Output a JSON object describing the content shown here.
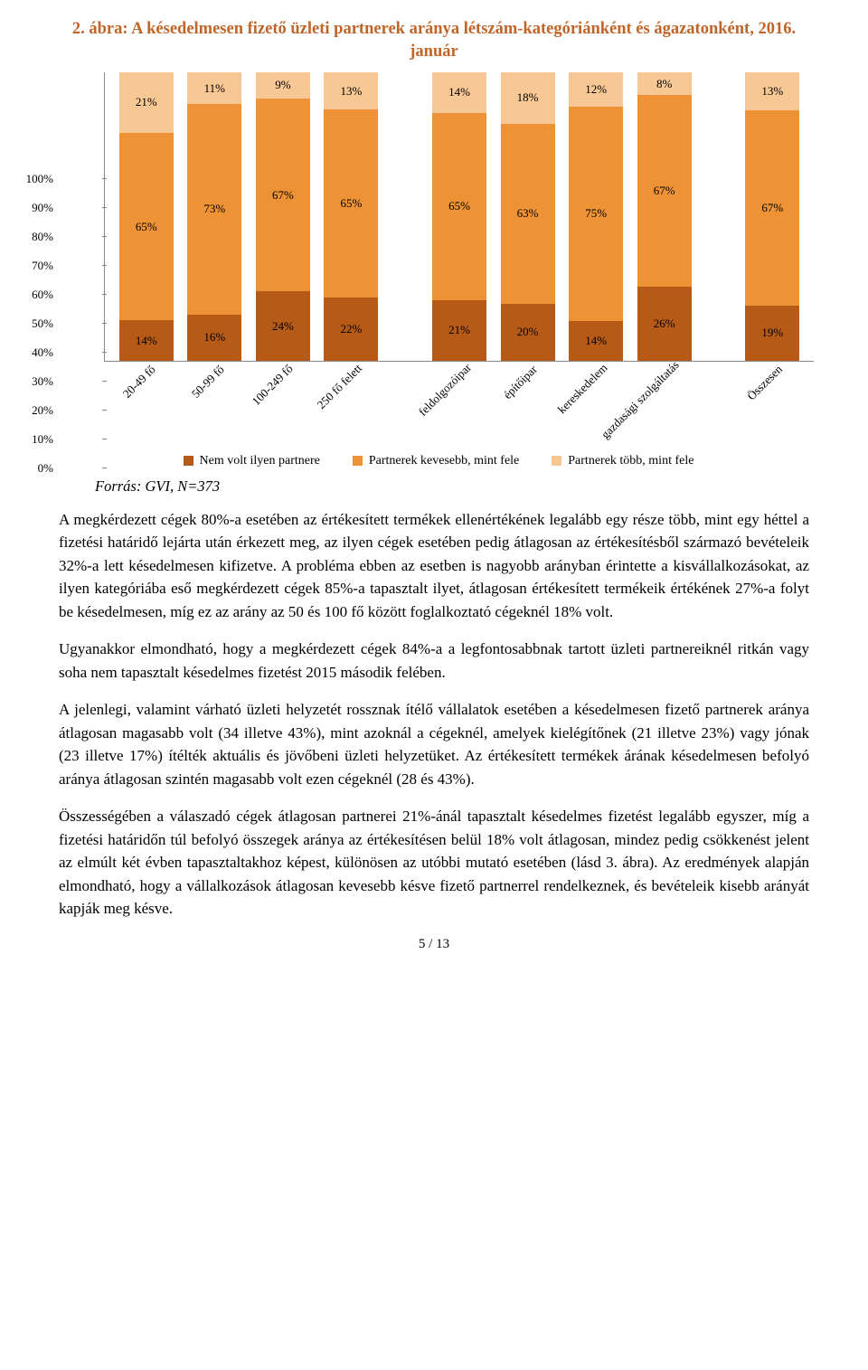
{
  "colors": {
    "title": "#c06529",
    "seg_bottom": "#b65a17",
    "seg_mid": "#ee9236",
    "seg_top": "#f8c894",
    "axis": "#888888",
    "text": "#000000",
    "bg": "#ffffff"
  },
  "chart": {
    "title": "2. ábra: A késedelmesen fizető üzleti partnerek aránya létszám-kategóriánként és ágazatonként, 2016. január",
    "type": "stacked-bar-100",
    "ylim": [
      0,
      100
    ],
    "ytick_step": 10,
    "y_ticks": [
      "0%",
      "10%",
      "20%",
      "30%",
      "40%",
      "50%",
      "60%",
      "70%",
      "80%",
      "90%",
      "100%"
    ],
    "groups": [
      {
        "label": "20-49 fő",
        "seg": [
          14,
          65,
          21
        ],
        "gap_before": false
      },
      {
        "label": "50-99 fő",
        "seg": [
          16,
          73,
          11
        ],
        "gap_before": false
      },
      {
        "label": "100-249 fő",
        "seg": [
          24,
          67,
          9
        ],
        "gap_before": false
      },
      {
        "label": "250 fő felett",
        "seg": [
          22,
          65,
          13
        ],
        "gap_before": false
      },
      {
        "label": "feldolgozóipar",
        "seg": [
          21,
          65,
          14
        ],
        "gap_before": true
      },
      {
        "label": "építőipar",
        "seg": [
          20,
          63,
          18
        ],
        "gap_before": false
      },
      {
        "label": "kereskedelem",
        "seg": [
          14,
          75,
          12
        ],
        "gap_before": false
      },
      {
        "label": "gazdasági szolgáltatás",
        "seg": [
          26,
          67,
          8
        ],
        "gap_before": false
      },
      {
        "label": "Összesen",
        "seg": [
          19,
          67,
          13
        ],
        "gap_before": true
      }
    ],
    "legend": [
      {
        "label": "Nem volt ilyen partnere",
        "color": "seg_bottom"
      },
      {
        "label": "Partnerek kevesebb, mint fele",
        "color": "seg_mid"
      },
      {
        "label": "Partnerek több, mint fele",
        "color": "seg_top"
      }
    ],
    "source": "Forrás: GVI, N=373"
  },
  "paragraphs": [
    "A megkérdezett cégek 80%-a esetében az értékesített termékek ellenértékének legalább egy része több, mint egy héttel a fizetési határidő lejárta után érkezett meg, az ilyen cégek esetében pedig átlagosan az értékesítésből származó bevételeik 32%-a lett késedelmesen kifizetve. A probléma ebben az esetben is nagyobb arányban érintette a kisvállalkozásokat, az ilyen kategóriába eső megkérdezett cégek 85%-a tapasztalt ilyet, átlagosan értékesített termékeik értékének 27%-a folyt be késedelmesen, míg ez az arány az 50 és 100 fő között foglalkoztató cégeknél 18% volt.",
    "Ugyanakkor elmondható, hogy a megkérdezett cégek 84%-a a legfontosabbnak tartott üzleti partnereiknél ritkán vagy soha nem tapasztalt késedelmes fizetést 2015 második felében.",
    "A jelenlegi, valamint várható üzleti helyzetét rossznak ítélő vállalatok esetében a késedelmesen fizető partnerek aránya átlagosan magasabb volt (34 illetve 43%), mint azoknál a cégeknél, amelyek kielégítőnek (21 illetve 23%) vagy jónak (23 illetve 17%) ítélték aktuális és jövőbeni üzleti helyzetüket. Az értékesített termékek árának késedelmesen befolyó aránya átlagosan szintén magasabb volt ezen cégeknél (28 és 43%).",
    "Összességében a válaszadó cégek átlagosan partnerei 21%-ánál tapasztalt késedelmes fizetést legalább egyszer, míg a fizetési határidőn túl befolyó összegek aránya az értékesítésen belül 18% volt átlagosan, mindez pedig csökkenést jelent az elmúlt két évben tapasztaltakhoz képest, különösen az utóbbi mutató esetében (lásd 3. ábra). Az eredmények alapján elmondható, hogy a vállalkozások átlagosan kevesebb késve fizető partnerrel rendelkeznek, és bevételeik kisebb arányát kapják meg késve."
  ],
  "page_number": "5 / 13"
}
